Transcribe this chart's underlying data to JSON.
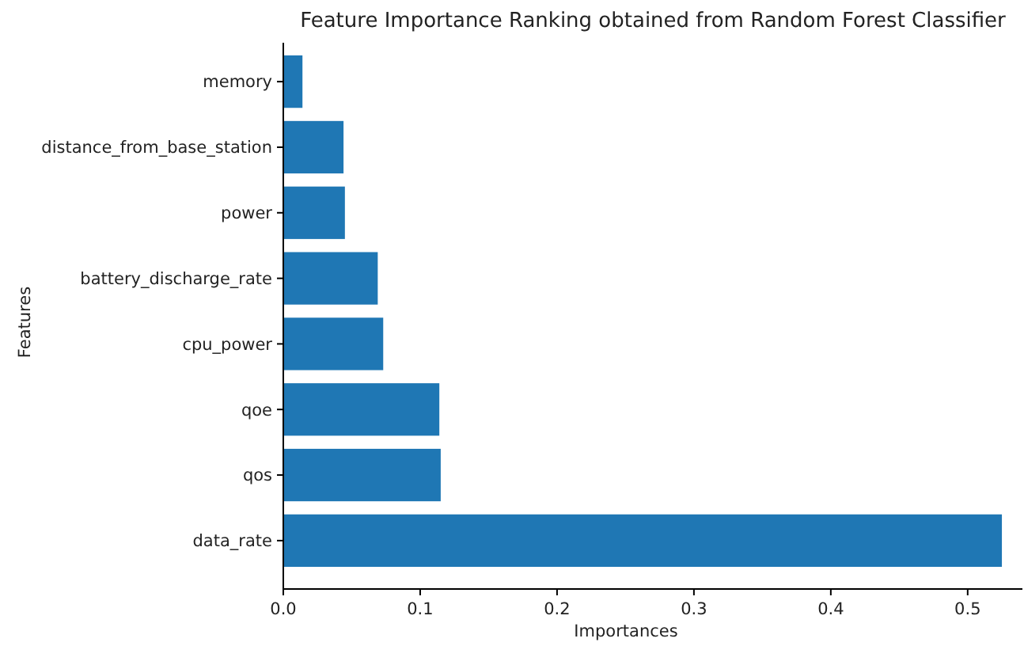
{
  "chart_data": {
    "type": "bar",
    "orientation": "horizontal",
    "title": "Feature Importance Ranking obtained from Random Forest Classifier",
    "xlabel": "Importances",
    "ylabel": "Features",
    "categories": [
      "memory",
      "distance_from_base_station",
      "power",
      "battery_discharge_rate",
      "cpu_power",
      "qoe",
      "qos",
      "data_rate"
    ],
    "values": [
      0.014,
      0.044,
      0.045,
      0.069,
      0.073,
      0.114,
      0.115,
      0.525
    ],
    "color": "#1f77b4",
    "xlim": [
      0,
      0.54
    ],
    "xticks": [
      {
        "value": 0,
        "label": "0.0"
      },
      0.1,
      0.2,
      0.3,
      0.4,
      0.5
    ],
    "grid": false
  }
}
